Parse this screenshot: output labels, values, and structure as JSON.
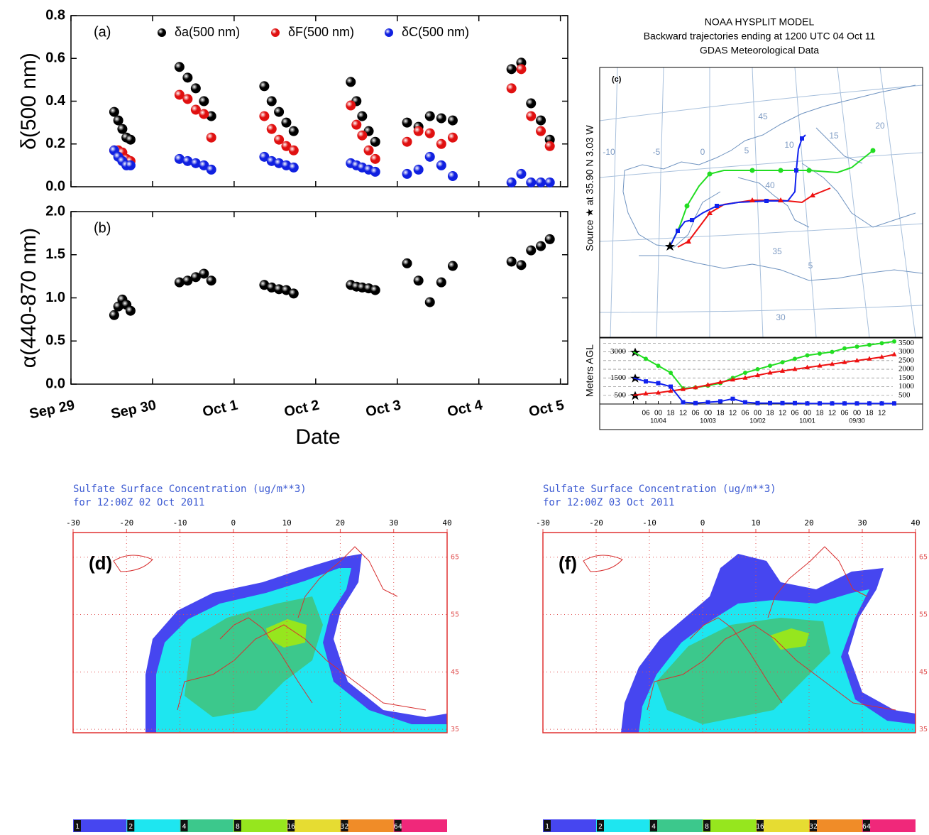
{
  "chart_data": [
    {
      "type": "scatter",
      "label": "(a)",
      "y_label": "δ(500 nm)",
      "x": [
        0.53,
        0.58,
        0.63,
        0.68,
        0.73,
        1.33,
        1.43,
        1.53,
        1.63,
        1.72,
        2.37,
        2.46,
        2.55,
        2.64,
        2.73,
        3.43,
        3.5,
        3.57,
        3.65,
        3.73,
        4.12,
        4.26,
        4.4,
        4.54,
        4.68,
        5.4,
        5.52,
        5.64,
        5.76,
        5.87
      ],
      "series": [
        {
          "name": "δa(500 nm)",
          "color": "#000000",
          "values": [
            0.35,
            0.31,
            0.27,
            0.23,
            0.22,
            0.56,
            0.51,
            0.46,
            0.4,
            0.33,
            0.47,
            0.4,
            0.35,
            0.3,
            0.26,
            0.49,
            0.4,
            0.33,
            0.26,
            0.21,
            0.3,
            0.28,
            0.33,
            0.32,
            0.31,
            0.55,
            0.58,
            0.39,
            0.31,
            0.22
          ]
        },
        {
          "name": "δF(500 nm)",
          "color": "#e01010",
          "values": [
            0.17,
            0.17,
            0.16,
            0.13,
            0.12,
            0.43,
            0.41,
            0.36,
            0.34,
            0.23,
            0.33,
            0.27,
            0.22,
            0.19,
            0.17,
            0.38,
            0.29,
            0.24,
            0.17,
            0.13,
            0.21,
            0.26,
            0.25,
            0.2,
            0.23,
            0.46,
            0.55,
            0.33,
            0.26,
            0.19
          ]
        },
        {
          "name": "δC(500 nm)",
          "color": "#1020e0",
          "values": [
            0.17,
            0.14,
            0.12,
            0.1,
            0.1,
            0.13,
            0.12,
            0.11,
            0.1,
            0.08,
            0.14,
            0.12,
            0.11,
            0.1,
            0.09,
            0.11,
            0.1,
            0.09,
            0.08,
            0.07,
            0.06,
            0.08,
            0.14,
            0.1,
            0.05,
            0.02,
            0.06,
            0.02,
            0.02,
            0.02
          ]
        }
      ],
      "xlim": [
        0,
        6.09
      ],
      "ylim": [
        0,
        0.8
      ],
      "yticks": [
        {
          "value": 0,
          "label": "0.0"
        },
        0.2,
        0.4,
        0.6,
        0.8
      ]
    },
    {
      "type": "scatter",
      "label": "(b)",
      "y_label": "α(440-870 nm)",
      "x_label": "Date",
      "x": [
        0.53,
        0.58,
        0.63,
        0.68,
        0.73,
        1.33,
        1.43,
        1.53,
        1.63,
        1.72,
        2.37,
        2.46,
        2.55,
        2.64,
        2.73,
        3.43,
        3.5,
        3.57,
        3.65,
        3.73,
        4.12,
        4.26,
        4.4,
        4.54,
        4.68,
        5.4,
        5.52,
        5.64,
        5.76,
        5.87
      ],
      "series": [
        {
          "color": "#000000",
          "values": [
            0.8,
            0.9,
            0.98,
            0.92,
            0.85,
            1.18,
            1.2,
            1.24,
            1.28,
            1.2,
            1.15,
            1.12,
            1.1,
            1.09,
            1.05,
            1.15,
            1.13,
            1.12,
            1.11,
            1.09,
            1.4,
            1.2,
            0.95,
            1.18,
            1.37,
            1.42,
            1.38,
            1.55,
            1.6,
            1.68
          ]
        }
      ],
      "xlim": [
        0,
        6.09
      ],
      "ylim": [
        0,
        2
      ],
      "yticks": [
        {
          "value": 0,
          "label": "0.0"
        },
        0.5,
        {
          "value": 1,
          "label": "1.0"
        },
        1.5,
        {
          "value": 2,
          "label": "2.0"
        }
      ],
      "xticks": [
        {
          "value": 0,
          "label": "Sep 29"
        },
        {
          "value": 1,
          "label": "Sep 30"
        },
        {
          "value": 2,
          "label": "Oct 1"
        },
        {
          "value": 3,
          "label": "Oct 2"
        },
        {
          "value": 4,
          "label": "Oct 3"
        },
        {
          "value": 5,
          "label": "Oct 4"
        },
        {
          "value": 6,
          "label": "Oct 5"
        }
      ]
    },
    {
      "type": "trajectory_map",
      "title": [
        "NOAA HYSPLIT MODEL",
        "Backward trajectories ending at 1200 UTC 04 Oct 11",
        "GDAS Meteorological Data"
      ],
      "label": "(c)",
      "side_label": "Source ★ at 35.90 N 3.03 W",
      "grid_labels": [
        "45",
        "15",
        "20",
        "-10",
        "-5",
        "0",
        "5",
        "10",
        "40",
        "35",
        "5",
        "30"
      ]
    },
    {
      "type": "line",
      "y_label": "Meters AGL",
      "categories": [
        null,
        "06",
        "00",
        "18",
        "12",
        "06",
        "00",
        "18",
        "12",
        "06",
        "00",
        "18",
        "12",
        "06",
        "00",
        "18",
        "12",
        "06",
        "00",
        "18",
        "12",
        null
      ],
      "date_labels": [
        "10/04",
        "10/03",
        "10/02",
        "10/01",
        "09/30"
      ],
      "series": [
        {
          "color": "#22dd22",
          "marker": "circle",
          "values": [
            3000,
            2600,
            2200,
            1800,
            900,
            950,
            1050,
            1200,
            1500,
            1800,
            2000,
            2200,
            2400,
            2600,
            2800,
            2900,
            3000,
            3200,
            3300,
            3400,
            3500,
            3600
          ]
        },
        {
          "color": "#ee1111",
          "marker": "triangle",
          "values": [
            500,
            600,
            650,
            750,
            850,
            950,
            1100,
            1250,
            1400,
            1500,
            1650,
            1800,
            1900,
            2000,
            2100,
            2200,
            2300,
            2400,
            2500,
            2600,
            2700,
            2850
          ]
        },
        {
          "color": "#1122ee",
          "marker": "square",
          "values": [
            1500,
            1300,
            1200,
            1000,
            100,
            50,
            100,
            150,
            300,
            100,
            50,
            50,
            50,
            50,
            30,
            30,
            30,
            30,
            30,
            30,
            30,
            30
          ]
        }
      ],
      "ylim": [
        0,
        3800
      ],
      "yticks": [
        500,
        1500,
        3000
      ],
      "y2lim": [
        0,
        3800
      ],
      "y2ticks": [
        500,
        1000,
        1500,
        2000,
        2500,
        3000,
        3500
      ],
      "grid": true
    },
    {
      "type": "map",
      "title": [
        "Sulfate Surface Concentration (ug/m**3)",
        "for 12:00Z 02 Oct 2011"
      ],
      "label": "(d)",
      "xlim": [
        -30,
        40
      ],
      "xticks": [
        -30,
        -20,
        -10,
        0,
        10,
        20,
        30,
        40
      ],
      "ylim": [
        34.4,
        69.3
      ],
      "yticks": [
        65,
        55,
        45,
        35
      ],
      "colorbar": [
        1,
        2,
        4,
        8,
        16,
        32,
        64
      ],
      "colorbar_colors": [
        "#4646f0",
        "#1ee6f0",
        "#3cc88c",
        "#96e61e",
        "#e6dc32",
        "#f08c28",
        "#f0287a"
      ]
    },
    {
      "type": "map",
      "title": [
        "Sulfate Surface Concentration (ug/m**3)",
        "for 12:00Z 03 Oct 2011"
      ],
      "label": "(f)",
      "xlim": [
        -30,
        40
      ],
      "xticks": [
        -30,
        -20,
        -10,
        0,
        10,
        20,
        30,
        40
      ],
      "ylim": [
        34.4,
        69.3
      ],
      "yticks": [
        65,
        55,
        45,
        35
      ],
      "colorbar": [
        1,
        2,
        4,
        8,
        16,
        32,
        64
      ],
      "colorbar_colors": [
        "#4646f0",
        "#1ee6f0",
        "#3cc88c",
        "#96e61e",
        "#e6dc32",
        "#f08c28",
        "#f0287a"
      ]
    }
  ]
}
